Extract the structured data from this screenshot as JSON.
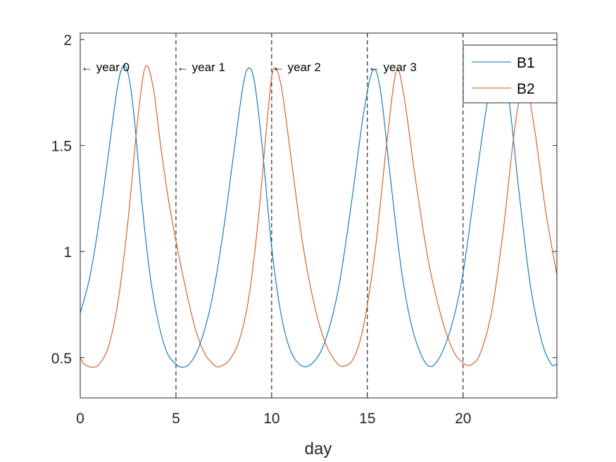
{
  "chart_data": {
    "type": "line",
    "title": "",
    "xlabel": "day",
    "ylabel": "",
    "xlim": [
      0,
      24.9
    ],
    "ylim": [
      0.31,
      2.03
    ],
    "x_ticks": [
      0,
      5,
      10,
      15,
      20
    ],
    "x_tick_labels": [
      "0",
      "5",
      "10",
      "15",
      "20"
    ],
    "y_ticks": [
      0.5,
      1,
      1.5,
      2
    ],
    "y_tick_labels": [
      "0.5",
      "1",
      "1.5",
      "2"
    ],
    "grid": false,
    "legend_position": "top-right",
    "series": [
      {
        "name": "B1",
        "color": "#0072BD",
        "points": [
          [
            0,
            0.71
          ],
          [
            0.5,
            0.88
          ],
          [
            1.0,
            1.15
          ],
          [
            1.5,
            1.48
          ],
          [
            1.9,
            1.75
          ],
          [
            2.2,
            1.87
          ],
          [
            2.5,
            1.84
          ],
          [
            2.8,
            1.65
          ],
          [
            3.2,
            1.25
          ],
          [
            3.6,
            0.92
          ],
          [
            4.0,
            0.7
          ],
          [
            4.5,
            0.53
          ],
          [
            5.0,
            0.47
          ],
          [
            5.3,
            0.455
          ],
          [
            5.7,
            0.47
          ],
          [
            6.2,
            0.55
          ],
          [
            6.8,
            0.74
          ],
          [
            7.4,
            1.05
          ],
          [
            8.0,
            1.45
          ],
          [
            8.5,
            1.78
          ],
          [
            8.8,
            1.865
          ],
          [
            9.1,
            1.8
          ],
          [
            9.5,
            1.5
          ],
          [
            10.0,
            1.02
          ],
          [
            10.5,
            0.7
          ],
          [
            11.0,
            0.53
          ],
          [
            11.6,
            0.46
          ],
          [
            12.2,
            0.48
          ],
          [
            12.8,
            0.58
          ],
          [
            13.5,
            0.83
          ],
          [
            14.2,
            1.25
          ],
          [
            14.8,
            1.65
          ],
          [
            15.3,
            1.855
          ],
          [
            15.7,
            1.75
          ],
          [
            16.2,
            1.35
          ],
          [
            16.8,
            0.9
          ],
          [
            17.4,
            0.62
          ],
          [
            18.1,
            0.468
          ],
          [
            18.7,
            0.49
          ],
          [
            19.4,
            0.65
          ],
          [
            20.0,
            0.9
          ],
          [
            20.7,
            1.35
          ],
          [
            21.3,
            1.72
          ],
          [
            21.8,
            1.87
          ],
          [
            22.3,
            1.78
          ],
          [
            22.9,
            1.3
          ],
          [
            23.5,
            0.85
          ],
          [
            24.1,
            0.58
          ],
          [
            24.6,
            0.47
          ],
          [
            24.9,
            0.47
          ]
        ]
      },
      {
        "name": "B2",
        "color": "#D95319",
        "points": [
          [
            0,
            0.5
          ],
          [
            0.2,
            0.47
          ],
          [
            0.6,
            0.455
          ],
          [
            1.0,
            0.47
          ],
          [
            1.5,
            0.56
          ],
          [
            2.0,
            0.78
          ],
          [
            2.5,
            1.15
          ],
          [
            3.0,
            1.62
          ],
          [
            3.4,
            1.87
          ],
          [
            3.8,
            1.78
          ],
          [
            4.2,
            1.5
          ],
          [
            4.6,
            1.25
          ],
          [
            5.0,
            1.05
          ],
          [
            5.5,
            0.83
          ],
          [
            6.0,
            0.64
          ],
          [
            6.5,
            0.52
          ],
          [
            7.0,
            0.465
          ],
          [
            7.3,
            0.458
          ],
          [
            7.8,
            0.49
          ],
          [
            8.3,
            0.58
          ],
          [
            8.8,
            0.78
          ],
          [
            9.3,
            1.15
          ],
          [
            9.8,
            1.65
          ],
          [
            10.1,
            1.86
          ],
          [
            10.5,
            1.78
          ],
          [
            11.0,
            1.45
          ],
          [
            11.6,
            1.05
          ],
          [
            12.2,
            0.76
          ],
          [
            12.8,
            0.57
          ],
          [
            13.4,
            0.475
          ],
          [
            13.8,
            0.46
          ],
          [
            14.3,
            0.5
          ],
          [
            14.8,
            0.65
          ],
          [
            15.4,
            1.0
          ],
          [
            16.0,
            1.5
          ],
          [
            16.5,
            1.845
          ],
          [
            16.9,
            1.74
          ],
          [
            17.5,
            1.35
          ],
          [
            18.2,
            0.95
          ],
          [
            18.9,
            0.68
          ],
          [
            19.5,
            0.53
          ],
          [
            20.0,
            0.475
          ],
          [
            20.4,
            0.465
          ],
          [
            20.9,
            0.52
          ],
          [
            21.5,
            0.72
          ],
          [
            22.1,
            1.1
          ],
          [
            22.7,
            1.58
          ],
          [
            23.2,
            1.8
          ],
          [
            23.7,
            1.6
          ],
          [
            24.3,
            1.2
          ],
          [
            24.9,
            0.89
          ]
        ]
      }
    ],
    "vertical_lines": [
      5,
      10,
      15,
      20
    ],
    "annotations": [
      {
        "x": 0,
        "y": 1.87,
        "text": "← year 0"
      },
      {
        "x": 5,
        "y": 1.87,
        "text": "← year 1"
      },
      {
        "x": 10,
        "y": 1.87,
        "text": "← year 2"
      },
      {
        "x": 15,
        "y": 1.87,
        "text": "← year 3"
      }
    ]
  }
}
